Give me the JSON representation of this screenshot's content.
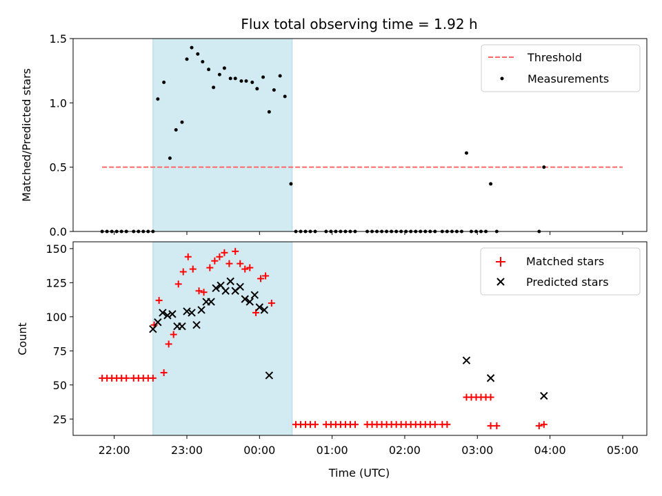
{
  "title": "Flux total observing time = 1.92 h",
  "xlabel": "Time (UTC)",
  "colors": {
    "shade": "#add8e6",
    "threshold": "#ff6666",
    "measurements": "#000000",
    "matched": "#ff0000",
    "predicted": "#000000"
  },
  "chart_data": [
    {
      "type": "scatter",
      "ylabel": "Matched/Predicted stars",
      "xlim": [
        "21:26",
        "05:20"
      ],
      "ylim": [
        0,
        1.5
      ],
      "grid": false,
      "legend_position": "top-right",
      "y_ticks": [
        "0.0",
        "0.5",
        "1.0",
        "1.5"
      ],
      "y_tick_values": [
        0,
        0.5,
        1.0,
        1.5
      ],
      "shaded_interval": [
        "22:32",
        "00:27"
      ],
      "threshold": {
        "name": "Threshold",
        "value": 0.5,
        "x": [
          "21:50",
          "05:00"
        ],
        "style": "dashed"
      },
      "series": [
        {
          "name": "Measurements",
          "marker": "dot",
          "points": [
            [
              "21:50",
              0
            ],
            [
              "21:54",
              0
            ],
            [
              "21:58",
              0
            ],
            [
              "22:02",
              0
            ],
            [
              "22:06",
              0
            ],
            [
              "22:10",
              0
            ],
            [
              "22:16",
              0
            ],
            [
              "22:20",
              0
            ],
            [
              "22:24",
              0
            ],
            [
              "22:28",
              0
            ],
            [
              "22:32",
              0
            ],
            [
              "22:36",
              1.03
            ],
            [
              "22:41",
              1.16
            ],
            [
              "22:46",
              0.57
            ],
            [
              "22:51",
              0.79
            ],
            [
              "22:56",
              0.85
            ],
            [
              "23:00",
              1.34
            ],
            [
              "23:04",
              1.43
            ],
            [
              "23:09",
              1.38
            ],
            [
              "23:13",
              1.32
            ],
            [
              "23:18",
              1.26
            ],
            [
              "23:22",
              1.12
            ],
            [
              "23:27",
              1.22
            ],
            [
              "23:31",
              1.27
            ],
            [
              "23:36",
              1.19
            ],
            [
              "23:40",
              1.19
            ],
            [
              "23:45",
              1.17
            ],
            [
              "23:49",
              1.17
            ],
            [
              "23:54",
              1.16
            ],
            [
              "23:58",
              1.11
            ],
            [
              "00:03",
              1.2
            ],
            [
              "00:08",
              0.93
            ],
            [
              "00:12",
              1.1
            ],
            [
              "00:17",
              1.21
            ],
            [
              "00:21",
              1.05
            ],
            [
              "00:26",
              0.37
            ],
            [
              "00:30",
              0
            ],
            [
              "00:34",
              0
            ],
            [
              "00:38",
              0
            ],
            [
              "00:42",
              0
            ],
            [
              "00:46",
              0
            ],
            [
              "00:55",
              0
            ],
            [
              "00:59",
              0
            ],
            [
              "01:03",
              0
            ],
            [
              "01:07",
              0
            ],
            [
              "01:11",
              0
            ],
            [
              "01:15",
              0
            ],
            [
              "01:19",
              0
            ],
            [
              "01:29",
              0
            ],
            [
              "01:33",
              0
            ],
            [
              "01:37",
              0
            ],
            [
              "01:41",
              0
            ],
            [
              "01:45",
              0
            ],
            [
              "01:49",
              0
            ],
            [
              "01:53",
              0
            ],
            [
              "01:57",
              0
            ],
            [
              "02:01",
              0
            ],
            [
              "02:05",
              0
            ],
            [
              "02:09",
              0
            ],
            [
              "02:13",
              0
            ],
            [
              "02:17",
              0
            ],
            [
              "02:21",
              0
            ],
            [
              "02:25",
              0
            ],
            [
              "02:31",
              0
            ],
            [
              "02:35",
              0
            ],
            [
              "02:39",
              0
            ],
            [
              "02:43",
              0
            ],
            [
              "02:47",
              0
            ],
            [
              "02:51",
              0.61
            ],
            [
              "02:55",
              0
            ],
            [
              "02:59",
              0
            ],
            [
              "03:03",
              0
            ],
            [
              "03:07",
              0
            ],
            [
              "03:11",
              0.37
            ],
            [
              "03:16",
              0
            ],
            [
              "03:51",
              0
            ],
            [
              "03:55",
              0.5
            ]
          ]
        }
      ]
    },
    {
      "type": "scatter",
      "ylabel": "Count",
      "xlim": [
        "21:26",
        "05:20"
      ],
      "ylim": [
        13,
        155
      ],
      "grid": false,
      "legend_position": "top-right",
      "y_ticks": [
        "25",
        "50",
        "75",
        "100",
        "125",
        "150"
      ],
      "y_tick_values": [
        25,
        50,
        75,
        100,
        125,
        150
      ],
      "x_ticks": [
        "22:00",
        "23:00",
        "00:00",
        "01:00",
        "02:00",
        "03:00",
        "04:00",
        "05:00"
      ],
      "x_tick_values": [
        "22:00",
        "23:00",
        "00:00",
        "01:00",
        "02:00",
        "03:00",
        "04:00",
        "05:00"
      ],
      "shaded_interval": [
        "22:32",
        "00:27"
      ],
      "series": [
        {
          "name": "Matched stars",
          "marker": "plus",
          "points": [
            [
              "21:50",
              55
            ],
            [
              "21:54",
              55
            ],
            [
              "21:58",
              55
            ],
            [
              "22:02",
              55
            ],
            [
              "22:06",
              55
            ],
            [
              "22:10",
              55
            ],
            [
              "22:16",
              55
            ],
            [
              "22:20",
              55
            ],
            [
              "22:24",
              55
            ],
            [
              "22:28",
              55
            ],
            [
              "22:32",
              55
            ],
            [
              "22:33",
              94
            ],
            [
              "22:37",
              112
            ],
            [
              "22:41",
              59
            ],
            [
              "22:45",
              80
            ],
            [
              "22:49",
              87
            ],
            [
              "22:53",
              124
            ],
            [
              "22:57",
              133
            ],
            [
              "23:01",
              144
            ],
            [
              "23:05",
              135
            ],
            [
              "23:10",
              119
            ],
            [
              "23:14",
              118
            ],
            [
              "23:19",
              136
            ],
            [
              "23:23",
              141
            ],
            [
              "23:27",
              144
            ],
            [
              "23:31",
              147
            ],
            [
              "23:35",
              139
            ],
            [
              "23:40",
              148
            ],
            [
              "23:44",
              139
            ],
            [
              "23:48",
              135
            ],
            [
              "23:52",
              136
            ],
            [
              "23:57",
              103
            ],
            [
              "00:01",
              128
            ],
            [
              "00:05",
              130
            ],
            [
              "00:10",
              110
            ],
            [
              "00:30",
              21
            ],
            [
              "00:34",
              21
            ],
            [
              "00:38",
              21
            ],
            [
              "00:42",
              21
            ],
            [
              "00:46",
              21
            ],
            [
              "00:55",
              21
            ],
            [
              "00:59",
              21
            ],
            [
              "01:03",
              21
            ],
            [
              "01:07",
              21
            ],
            [
              "01:11",
              21
            ],
            [
              "01:15",
              21
            ],
            [
              "01:19",
              21
            ],
            [
              "01:29",
              21
            ],
            [
              "01:33",
              21
            ],
            [
              "01:37",
              21
            ],
            [
              "01:41",
              21
            ],
            [
              "01:45",
              21
            ],
            [
              "01:49",
              21
            ],
            [
              "01:53",
              21
            ],
            [
              "01:57",
              21
            ],
            [
              "02:01",
              21
            ],
            [
              "02:05",
              21
            ],
            [
              "02:09",
              21
            ],
            [
              "02:13",
              21
            ],
            [
              "02:17",
              21
            ],
            [
              "02:21",
              21
            ],
            [
              "02:25",
              21
            ],
            [
              "02:31",
              21
            ],
            [
              "02:35",
              21
            ],
            [
              "02:51",
              41
            ],
            [
              "02:55",
              41
            ],
            [
              "02:59",
              41
            ],
            [
              "03:03",
              41
            ],
            [
              "03:07",
              41
            ],
            [
              "03:11",
              41
            ],
            [
              "03:11",
              20
            ],
            [
              "03:16",
              20
            ],
            [
              "03:51",
              20
            ],
            [
              "03:55",
              21
            ]
          ]
        },
        {
          "name": "Predicted stars",
          "marker": "x",
          "points": [
            [
              "22:32",
              91
            ],
            [
              "22:36",
              96
            ],
            [
              "22:40",
              103
            ],
            [
              "22:44",
              101
            ],
            [
              "22:48",
              102
            ],
            [
              "22:52",
              93
            ],
            [
              "22:56",
              93
            ],
            [
              "23:00",
              104
            ],
            [
              "23:04",
              103
            ],
            [
              "23:08",
              94
            ],
            [
              "23:12",
              105
            ],
            [
              "23:16",
              111
            ],
            [
              "23:20",
              111
            ],
            [
              "23:24",
              121
            ],
            [
              "23:28",
              123
            ],
            [
              "23:32",
              119
            ],
            [
              "23:36",
              126
            ],
            [
              "23:40",
              119
            ],
            [
              "23:44",
              122
            ],
            [
              "23:48",
              113
            ],
            [
              "23:52",
              111
            ],
            [
              "23:56",
              116
            ],
            [
              "00:00",
              107
            ],
            [
              "00:04",
              105
            ],
            [
              "00:08",
              57
            ],
            [
              "02:51",
              68
            ],
            [
              "03:11",
              55
            ],
            [
              "03:55",
              42
            ]
          ]
        }
      ]
    }
  ]
}
